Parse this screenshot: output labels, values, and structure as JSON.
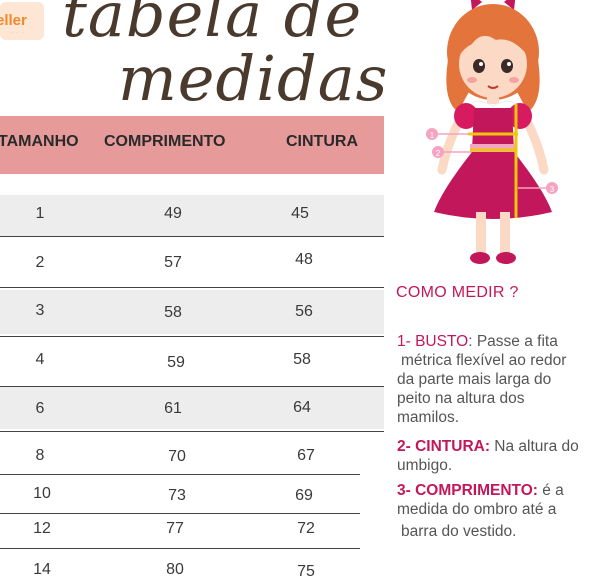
{
  "logo": {
    "text": "eller"
  },
  "title": {
    "line1": "tabela de",
    "line2": "medidas"
  },
  "table": {
    "headers": [
      "TAMANHO",
      "COMPRIMENTO",
      "CINTURA"
    ],
    "rows": [
      [
        "1",
        "49",
        "45"
      ],
      [
        "2",
        "57",
        "48"
      ],
      [
        "3",
        "58",
        "56"
      ],
      [
        "4",
        "59",
        "58"
      ],
      [
        "6",
        "61",
        "64"
      ],
      [
        "8",
        "70",
        "67"
      ],
      [
        "10",
        "73",
        "69"
      ],
      [
        "12",
        "77",
        "72"
      ],
      [
        "14",
        "80",
        "75"
      ]
    ]
  },
  "instructions": {
    "heading": "COMO MEDIR ?",
    "items": [
      {
        "label": "1- BUSTO",
        "sep": ":",
        "lines": [
          " Passe a fita",
          "métrica flexível ao redor",
          "da parte mais larga do",
          "peito na altura dos",
          "mamilos."
        ]
      },
      {
        "label": "2- CINTURA:",
        "lines": [
          " Na altura do",
          "umbigo."
        ]
      },
      {
        "label": "3- COMPRIMENTO:",
        "lines": [
          " é a",
          "medida do ombro até a",
          "barra do vestido."
        ]
      }
    ]
  },
  "illustration": {
    "markers": [
      "1",
      "2",
      "3"
    ]
  },
  "colors": {
    "header": "#e69a9a",
    "accent": "#c2185b",
    "band": "#ededed"
  }
}
